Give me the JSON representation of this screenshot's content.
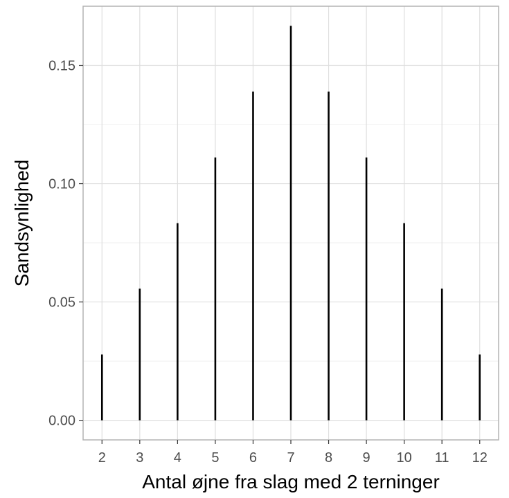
{
  "chart_data": {
    "type": "bar",
    "style": "spike",
    "xlabel": "Antal øjne fra slag med 2 terninger",
    "ylabel": "Sandsynlighed",
    "x": [
      2,
      3,
      4,
      5,
      6,
      7,
      8,
      9,
      10,
      11,
      12
    ],
    "values": [
      0.0278,
      0.0556,
      0.0833,
      0.1111,
      0.1389,
      0.1667,
      0.1389,
      0.1111,
      0.0833,
      0.0556,
      0.0278
    ],
    "x_ticks": [
      "2",
      "3",
      "4",
      "5",
      "6",
      "7",
      "8",
      "9",
      "10",
      "11",
      "12"
    ],
    "y_ticks": [
      0.0,
      0.05,
      0.1,
      0.15
    ],
    "y_tick_labels": [
      "0.00",
      "0.05",
      "0.10",
      "0.15"
    ],
    "xlim": [
      1.5,
      12.5
    ],
    "ylim": [
      -0.0083,
      0.175
    ],
    "grid": true,
    "theme": "light",
    "colors": {
      "bar": "#000000",
      "grid_major": "#dedede",
      "grid_minor": "#efefef",
      "panel_border": "#b3b3b3",
      "tick_text": "#4d4d4d",
      "title_text": "#000000"
    }
  }
}
